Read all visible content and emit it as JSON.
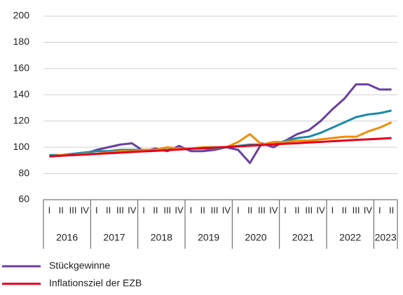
{
  "chart_data": {
    "type": "line",
    "categories": [
      "I",
      "II",
      "III",
      "IV",
      "I",
      "II",
      "III",
      "IV",
      "I",
      "II",
      "III",
      "IV",
      "I",
      "II",
      "III",
      "IV",
      "I",
      "II",
      "III",
      "IV",
      "I",
      "II",
      "III",
      "IV",
      "I",
      "II",
      "III",
      "IV",
      "I",
      "II"
    ],
    "groups": [
      "2016",
      "2017",
      "2018",
      "2019",
      "2020",
      "2021",
      "2022",
      "2023"
    ],
    "series": [
      {
        "name": "Stückgewinne",
        "color": "#6b3fa0",
        "values": [
          94,
          94,
          94,
          95,
          98,
          100,
          102,
          103,
          97,
          99,
          97,
          101,
          97,
          97,
          98,
          100,
          98,
          88,
          103,
          100,
          105,
          110,
          113,
          120,
          129,
          137,
          148,
          148,
          144,
          144
        ]
      },
      {
        "color": "#1a8aa8",
        "values": [
          94,
          94,
          95,
          96,
          97,
          97,
          98,
          98,
          98,
          98,
          98,
          99,
          99,
          99,
          99,
          100,
          101,
          102,
          102,
          102,
          105,
          107,
          108,
          111,
          115,
          119,
          123,
          125,
          126,
          128
        ]
      },
      {
        "color": "#f28c00",
        "values": [
          93,
          94,
          94,
          95,
          95,
          96,
          97,
          97,
          98,
          98,
          100,
          99,
          99,
          100,
          100,
          100,
          104,
          110,
          102,
          104,
          104,
          105,
          105,
          106,
          107,
          108,
          108,
          112,
          115,
          119
        ]
      },
      {
        "name": "Inflationsziel der EZB",
        "color": "#e3001b",
        "values": [
          93,
          93.5,
          94,
          94.4,
          94.9,
          95.4,
          95.9,
          96.4,
          96.9,
          97.3,
          97.8,
          98.3,
          98.8,
          99.3,
          99.8,
          100.2,
          100.7,
          101.2,
          101.7,
          102.2,
          102.7,
          103.1,
          103.6,
          104.1,
          104.6,
          105.1,
          105.6,
          106,
          106.5,
          107
        ]
      }
    ],
    "ylim": [
      60,
      200
    ],
    "yticks": [
      60,
      80,
      100,
      120,
      140,
      160,
      180,
      200
    ],
    "grid": true
  }
}
